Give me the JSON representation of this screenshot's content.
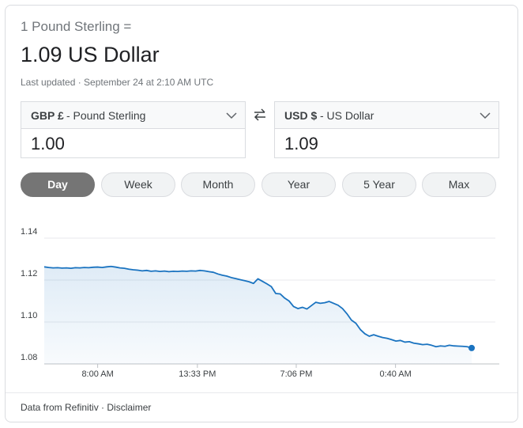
{
  "header": {
    "from_line": "1 Pound Sterling =",
    "result": "1.09 US Dollar",
    "updated": "Last updated · September 24 at 2:10 AM UTC"
  },
  "converter": {
    "from": {
      "code": "GBP £",
      "name": "- Pound Sterling",
      "amount": "1.00"
    },
    "to": {
      "code": "USD $",
      "name": "- US Dollar",
      "amount": "1.09"
    }
  },
  "tabs": [
    "Day",
    "Week",
    "Month",
    "Year",
    "5 Year",
    "Max"
  ],
  "active_tab": 0,
  "chart_data": {
    "type": "line",
    "color": "#1a73c0",
    "values": [
      1.1263,
      1.126,
      1.1258,
      1.1259,
      1.1257,
      1.1258,
      1.1256,
      1.1259,
      1.1258,
      1.126,
      1.1259,
      1.1261,
      1.1262,
      1.126,
      1.1263,
      1.1265,
      1.1262,
      1.1258,
      1.1256,
      1.1252,
      1.1249,
      1.1247,
      1.1244,
      1.1246,
      1.1242,
      1.1244,
      1.1241,
      1.1243,
      1.124,
      1.1242,
      1.1241,
      1.1243,
      1.1242,
      1.1244,
      1.1243,
      1.1246,
      1.1244,
      1.124,
      1.1237,
      1.1229,
      1.1223,
      1.1219,
      1.1212,
      1.1207,
      1.1202,
      1.1197,
      1.1192,
      1.1184,
      1.1206,
      1.1194,
      1.1182,
      1.1169,
      1.1136,
      1.1134,
      1.1114,
      1.11,
      1.1074,
      1.1064,
      1.107,
      1.1062,
      1.1078,
      1.1094,
      1.1089,
      1.1092,
      1.1098,
      1.1089,
      1.108,
      1.1064,
      1.1039,
      1.1009,
      1.0994,
      1.0964,
      1.0944,
      1.0932,
      1.0939,
      1.0932,
      1.0926,
      1.0922,
      1.0916,
      1.0909,
      1.0912,
      1.0904,
      1.0906,
      1.0899,
      1.0896,
      1.0892,
      1.0894,
      1.0889,
      1.0882,
      1.0886,
      1.0884,
      1.0889,
      1.0886,
      1.0885,
      1.0884,
      1.0882,
      1.0876
    ],
    "xlim": [
      0,
      96
    ],
    "xticks": [
      {
        "value": 12,
        "label": "8:00 AM"
      },
      {
        "value": 34.4,
        "label": "13:33 PM"
      },
      {
        "value": 56.6,
        "label": "7:06 PM"
      },
      {
        "value": 78.9,
        "label": "0:40 AM"
      }
    ],
    "ylim": [
      1.08,
      1.14
    ],
    "yticks": [
      1.08,
      {
        "value": 1.1,
        "label": "1.10"
      },
      1.12,
      1.14
    ],
    "grid": true
  },
  "footer": {
    "source": "Data from Refinitiv · Disclaimer"
  }
}
